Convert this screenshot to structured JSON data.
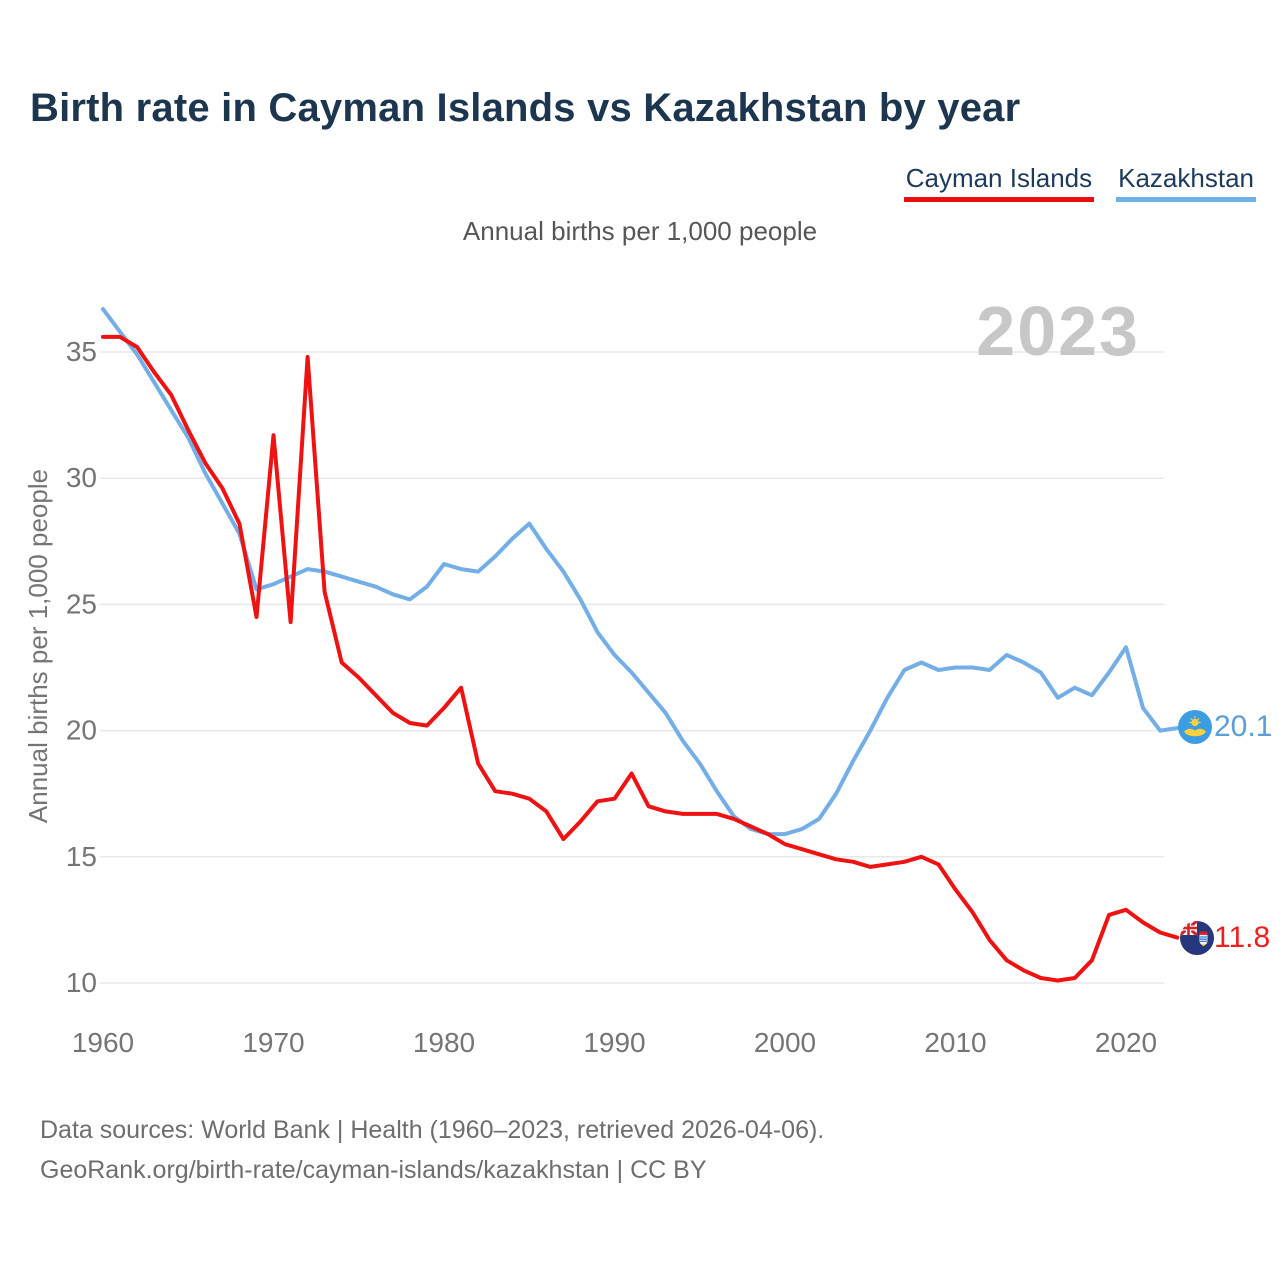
{
  "title": "Birth rate in Cayman Islands vs Kazakhstan by year",
  "subtitle": "Annual births per 1,000 people",
  "watermark": "2023",
  "legend": {
    "cayman": {
      "label": "Cayman Islands",
      "color": "#ee0d0d"
    },
    "kazakhstan": {
      "label": "Kazakhstan",
      "color": "#6fb1e9"
    }
  },
  "end_labels": {
    "kazakhstan": "20.1",
    "cayman": "11.8"
  },
  "footer": {
    "line1": "Data sources: World Bank | Health (1960–2023, retrieved 2026-04-06).",
    "line2": "GeoRank.org/birth-rate/cayman-islands/kazakhstan | CC BY"
  },
  "chart_data": {
    "type": "line",
    "title": "Birth rate in Cayman Islands vs Kazakhstan by year",
    "ylabel": "Annual births per 1,000 people",
    "xlabel": "",
    "grid": "horizontal",
    "legend_position": "top-right",
    "xlim": [
      1960,
      2023
    ],
    "ylim": [
      9,
      37.5
    ],
    "yticks": [
      10,
      15,
      20,
      25,
      30,
      35
    ],
    "xticks": [
      1960,
      1970,
      1980,
      1990,
      2000,
      2010,
      2020
    ],
    "x": [
      1960,
      1961,
      1962,
      1963,
      1964,
      1965,
      1966,
      1967,
      1968,
      1969,
      1970,
      1971,
      1972,
      1973,
      1974,
      1975,
      1976,
      1977,
      1978,
      1979,
      1980,
      1981,
      1982,
      1983,
      1984,
      1985,
      1986,
      1987,
      1988,
      1989,
      1990,
      1991,
      1992,
      1993,
      1994,
      1995,
      1996,
      1997,
      1998,
      1999,
      2000,
      2001,
      2002,
      2003,
      2004,
      2005,
      2006,
      2007,
      2008,
      2009,
      2010,
      2011,
      2012,
      2013,
      2014,
      2015,
      2016,
      2017,
      2018,
      2019,
      2020,
      2021,
      2022,
      2023
    ],
    "series": [
      {
        "name": "Kazakhstan",
        "color": "#73aee6",
        "values": [
          36.7,
          35.8,
          34.9,
          33.8,
          32.7,
          31.6,
          30.2,
          29.0,
          27.8,
          25.6,
          25.8,
          26.1,
          26.4,
          26.3,
          26.1,
          25.9,
          25.7,
          25.4,
          25.2,
          25.7,
          26.6,
          26.4,
          26.3,
          26.9,
          27.6,
          28.2,
          27.2,
          26.3,
          25.2,
          23.9,
          23.0,
          22.3,
          21.5,
          20.7,
          19.6,
          18.7,
          17.6,
          16.6,
          16.1,
          15.9,
          15.9,
          16.1,
          16.5,
          17.5,
          18.8,
          20.0,
          21.3,
          22.4,
          22.7,
          22.4,
          22.5,
          22.5,
          22.4,
          23.0,
          22.7,
          22.3,
          21.3,
          21.7,
          21.4,
          22.3,
          23.3,
          20.9,
          20.0,
          20.1
        ]
      },
      {
        "name": "Cayman Islands",
        "color": "#ef1212",
        "values": [
          35.6,
          35.6,
          35.2,
          34.2,
          33.3,
          31.9,
          30.6,
          29.6,
          28.2,
          24.5,
          31.7,
          24.3,
          34.8,
          25.5,
          22.7,
          22.1,
          21.4,
          20.7,
          20.3,
          20.2,
          20.9,
          21.7,
          18.7,
          17.6,
          17.5,
          17.3,
          16.8,
          15.7,
          16.4,
          17.2,
          17.3,
          18.3,
          17.0,
          16.8,
          16.7,
          16.7,
          16.7,
          16.5,
          16.2,
          15.9,
          15.5,
          15.3,
          15.1,
          14.9,
          14.8,
          14.6,
          14.7,
          14.8,
          15.0,
          14.7,
          13.7,
          12.8,
          11.7,
          10.9,
          10.5,
          10.2,
          10.1,
          10.2,
          10.9,
          12.7,
          12.9,
          12.4,
          12.0,
          11.8
        ]
      }
    ]
  }
}
